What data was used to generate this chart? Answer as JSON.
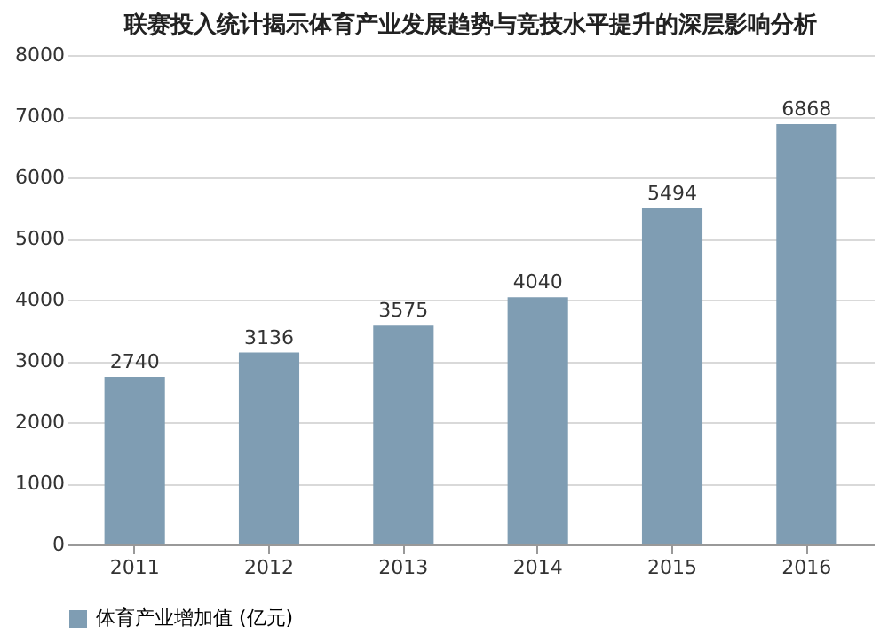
{
  "chart_data": {
    "type": "bar",
    "title": "联赛投入统计揭示体育产业发展趋势与竞技水平提升的深层影响分析",
    "categories": [
      "2011",
      "2012",
      "2013",
      "2014",
      "2015",
      "2016"
    ],
    "series": [
      {
        "name": "体育产业增加值 (亿元)",
        "color": "#7f9db3",
        "values": [
          2740,
          3136,
          3575,
          4040,
          5494,
          6868
        ]
      }
    ],
    "ylim": [
      0,
      8000
    ],
    "yticks": [
      0,
      1000,
      2000,
      3000,
      4000,
      5000,
      6000,
      7000,
      8000
    ],
    "grid": "y",
    "legend": "bottom",
    "data_labels": true
  }
}
